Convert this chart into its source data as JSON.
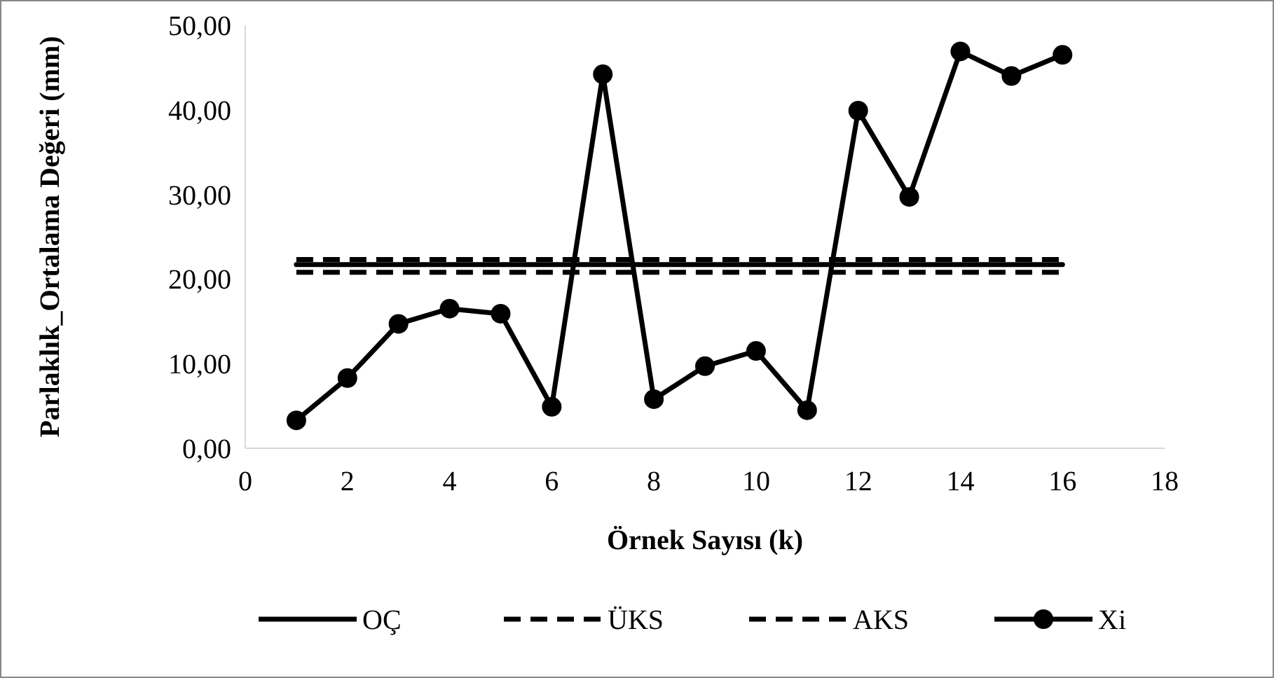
{
  "chart_data": {
    "type": "line",
    "xlabel": "Örnek Sayısı (k)",
    "ylabel": "Parlaklık_Ortalama Değeri (mm)",
    "x": [
      1,
      2,
      3,
      4,
      5,
      6,
      7,
      8,
      9,
      10,
      11,
      12,
      13,
      14,
      15,
      16
    ],
    "series": [
      {
        "name": "OÇ",
        "color": "#000000",
        "line_style": "solid",
        "marker": "none",
        "values": [
          21.7,
          21.7,
          21.7,
          21.7,
          21.7,
          21.7,
          21.7,
          21.7,
          21.7,
          21.7,
          21.7,
          21.7,
          21.7,
          21.7,
          21.7,
          21.7
        ]
      },
      {
        "name": "ÜKS",
        "color": "#000000",
        "line_style": "dashed",
        "marker": "none",
        "values": [
          22.3,
          22.3,
          22.3,
          22.3,
          22.3,
          22.3,
          22.3,
          22.3,
          22.3,
          22.3,
          22.3,
          22.3,
          22.3,
          22.3,
          22.3,
          22.3
        ]
      },
      {
        "name": "AKS",
        "color": "#000000",
        "line_style": "dashed",
        "marker": "none",
        "values": [
          20.8,
          20.8,
          20.8,
          20.8,
          20.8,
          20.8,
          20.8,
          20.8,
          20.8,
          20.8,
          20.8,
          20.8,
          20.8,
          20.8,
          20.8,
          20.8
        ]
      },
      {
        "name": "Xi",
        "color": "#000000",
        "line_style": "solid",
        "marker": "circle",
        "values": [
          3.3,
          8.3,
          14.7,
          16.5,
          15.9,
          4.9,
          44.2,
          5.8,
          9.7,
          11.5,
          4.5,
          39.9,
          29.7,
          46.9,
          44.0,
          46.5
        ]
      }
    ],
    "xlim": [
      0,
      18
    ],
    "xticks": [
      0,
      2,
      4,
      6,
      8,
      10,
      12,
      14,
      16,
      18
    ],
    "ylim": [
      0,
      50
    ],
    "yticks": [
      {
        "value": 0,
        "label": "0,00"
      },
      {
        "value": 10,
        "label": "10,00"
      },
      {
        "value": 20,
        "label": "20,00"
      },
      {
        "value": 30,
        "label": "30,00"
      },
      {
        "value": 40,
        "label": "40,00"
      },
      {
        "value": 50,
        "label": "50,00"
      }
    ],
    "grid": false,
    "legend": "bottom"
  }
}
